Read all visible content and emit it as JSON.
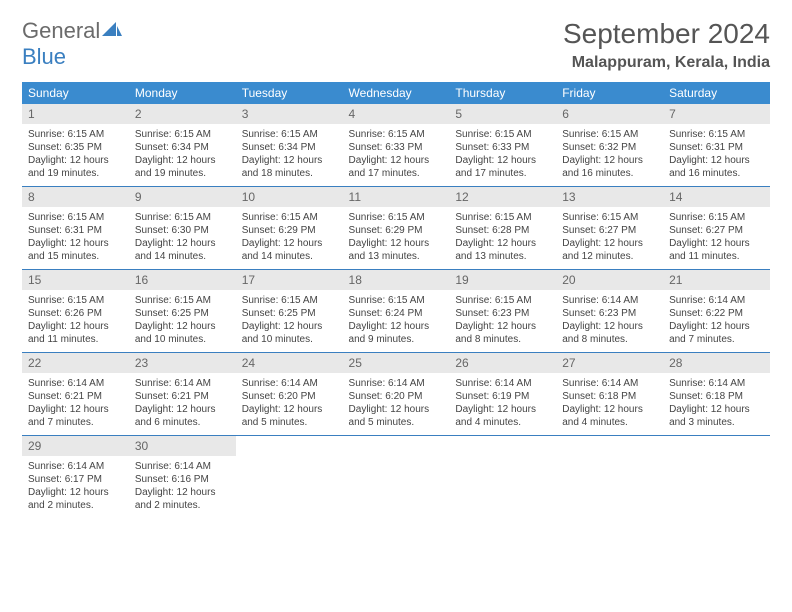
{
  "logo": {
    "word1": "General",
    "word2": "Blue"
  },
  "title": "September 2024",
  "location": "Malappuram, Kerala, India",
  "colors": {
    "header_bg": "#3a8bcf",
    "header_fg": "#ffffff",
    "daynum_bg": "#e8e8e8",
    "daynum_fg": "#666666",
    "rule": "#3a7fc0",
    "title_fg": "#555555",
    "logo_gray": "#6b6b6b",
    "logo_blue": "#3a7fc0",
    "body_text": "#444444"
  },
  "daysOfWeek": [
    "Sunday",
    "Monday",
    "Tuesday",
    "Wednesday",
    "Thursday",
    "Friday",
    "Saturday"
  ],
  "weeks": [
    [
      {
        "n": "1",
        "sr": "6:15 AM",
        "ss": "6:35 PM",
        "dl": "12 hours and 19 minutes."
      },
      {
        "n": "2",
        "sr": "6:15 AM",
        "ss": "6:34 PM",
        "dl": "12 hours and 19 minutes."
      },
      {
        "n": "3",
        "sr": "6:15 AM",
        "ss": "6:34 PM",
        "dl": "12 hours and 18 minutes."
      },
      {
        "n": "4",
        "sr": "6:15 AM",
        "ss": "6:33 PM",
        "dl": "12 hours and 17 minutes."
      },
      {
        "n": "5",
        "sr": "6:15 AM",
        "ss": "6:33 PM",
        "dl": "12 hours and 17 minutes."
      },
      {
        "n": "6",
        "sr": "6:15 AM",
        "ss": "6:32 PM",
        "dl": "12 hours and 16 minutes."
      },
      {
        "n": "7",
        "sr": "6:15 AM",
        "ss": "6:31 PM",
        "dl": "12 hours and 16 minutes."
      }
    ],
    [
      {
        "n": "8",
        "sr": "6:15 AM",
        "ss": "6:31 PM",
        "dl": "12 hours and 15 minutes."
      },
      {
        "n": "9",
        "sr": "6:15 AM",
        "ss": "6:30 PM",
        "dl": "12 hours and 14 minutes."
      },
      {
        "n": "10",
        "sr": "6:15 AM",
        "ss": "6:29 PM",
        "dl": "12 hours and 14 minutes."
      },
      {
        "n": "11",
        "sr": "6:15 AM",
        "ss": "6:29 PM",
        "dl": "12 hours and 13 minutes."
      },
      {
        "n": "12",
        "sr": "6:15 AM",
        "ss": "6:28 PM",
        "dl": "12 hours and 13 minutes."
      },
      {
        "n": "13",
        "sr": "6:15 AM",
        "ss": "6:27 PM",
        "dl": "12 hours and 12 minutes."
      },
      {
        "n": "14",
        "sr": "6:15 AM",
        "ss": "6:27 PM",
        "dl": "12 hours and 11 minutes."
      }
    ],
    [
      {
        "n": "15",
        "sr": "6:15 AM",
        "ss": "6:26 PM",
        "dl": "12 hours and 11 minutes."
      },
      {
        "n": "16",
        "sr": "6:15 AM",
        "ss": "6:25 PM",
        "dl": "12 hours and 10 minutes."
      },
      {
        "n": "17",
        "sr": "6:15 AM",
        "ss": "6:25 PM",
        "dl": "12 hours and 10 minutes."
      },
      {
        "n": "18",
        "sr": "6:15 AM",
        "ss": "6:24 PM",
        "dl": "12 hours and 9 minutes."
      },
      {
        "n": "19",
        "sr": "6:15 AM",
        "ss": "6:23 PM",
        "dl": "12 hours and 8 minutes."
      },
      {
        "n": "20",
        "sr": "6:14 AM",
        "ss": "6:23 PM",
        "dl": "12 hours and 8 minutes."
      },
      {
        "n": "21",
        "sr": "6:14 AM",
        "ss": "6:22 PM",
        "dl": "12 hours and 7 minutes."
      }
    ],
    [
      {
        "n": "22",
        "sr": "6:14 AM",
        "ss": "6:21 PM",
        "dl": "12 hours and 7 minutes."
      },
      {
        "n": "23",
        "sr": "6:14 AM",
        "ss": "6:21 PM",
        "dl": "12 hours and 6 minutes."
      },
      {
        "n": "24",
        "sr": "6:14 AM",
        "ss": "6:20 PM",
        "dl": "12 hours and 5 minutes."
      },
      {
        "n": "25",
        "sr": "6:14 AM",
        "ss": "6:20 PM",
        "dl": "12 hours and 5 minutes."
      },
      {
        "n": "26",
        "sr": "6:14 AM",
        "ss": "6:19 PM",
        "dl": "12 hours and 4 minutes."
      },
      {
        "n": "27",
        "sr": "6:14 AM",
        "ss": "6:18 PM",
        "dl": "12 hours and 4 minutes."
      },
      {
        "n": "28",
        "sr": "6:14 AM",
        "ss": "6:18 PM",
        "dl": "12 hours and 3 minutes."
      }
    ],
    [
      {
        "n": "29",
        "sr": "6:14 AM",
        "ss": "6:17 PM",
        "dl": "12 hours and 2 minutes."
      },
      {
        "n": "30",
        "sr": "6:14 AM",
        "ss": "6:16 PM",
        "dl": "12 hours and 2 minutes."
      },
      null,
      null,
      null,
      null,
      null
    ]
  ],
  "labels": {
    "sunrise": "Sunrise: ",
    "sunset": "Sunset: ",
    "daylight": "Daylight: "
  }
}
